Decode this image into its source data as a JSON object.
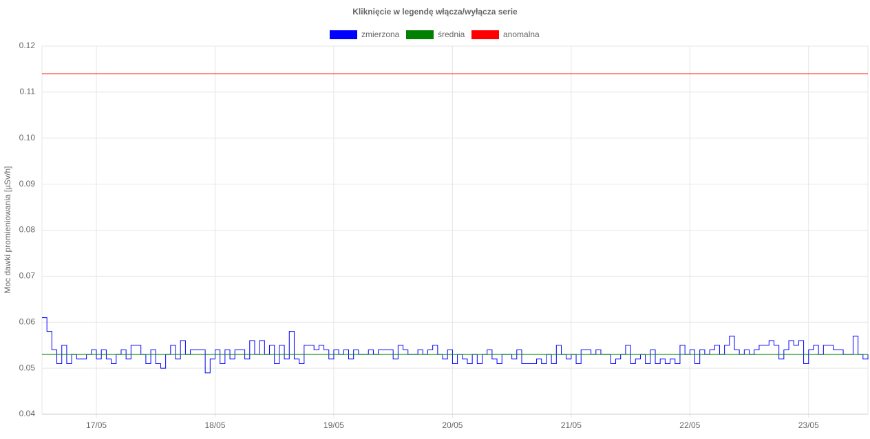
{
  "chart_data": {
    "type": "step-line",
    "title": "Kliknięcie w legendę włącza/wyłącza serie",
    "y_label": "Moc dawki promieniowania [µSv/h]",
    "xlim": [
      13,
      180
    ],
    "ylim": [
      0.04,
      0.12
    ],
    "xticks": [
      {
        "value": 24,
        "label": "17/05"
      },
      {
        "value": 48,
        "label": "18/05"
      },
      {
        "value": 72,
        "label": "19/05"
      },
      {
        "value": 96,
        "label": "20/05"
      },
      {
        "value": 120,
        "label": "21/05"
      },
      {
        "value": 144,
        "label": "22/05"
      },
      {
        "value": 168,
        "label": "23/05"
      }
    ],
    "yticks": [
      0.04,
      0.05,
      0.06,
      0.07,
      0.08,
      0.09,
      {
        "value": 0.1,
        "label": "0.10"
      },
      0.11,
      0.12
    ],
    "grid": true,
    "series": [
      {
        "name": "zmierzona",
        "color": "#0000ff",
        "x": [
          13,
          14,
          15,
          16,
          17,
          18,
          19,
          20,
          21,
          22,
          23,
          24,
          25,
          26,
          27,
          28,
          29,
          30,
          31,
          32,
          33,
          34,
          35,
          36,
          37,
          38,
          39,
          40,
          41,
          42,
          43,
          44,
          45,
          46,
          47,
          48,
          49,
          50,
          51,
          52,
          53,
          54,
          55,
          56,
          57,
          58,
          59,
          60,
          61,
          62,
          63,
          64,
          65,
          66,
          67,
          68,
          69,
          70,
          71,
          72,
          73,
          74,
          75,
          76,
          77,
          78,
          79,
          80,
          81,
          82,
          83,
          84,
          85,
          86,
          87,
          88,
          89,
          90,
          91,
          92,
          93,
          94,
          95,
          96,
          97,
          98,
          99,
          100,
          101,
          102,
          103,
          104,
          105,
          106,
          107,
          108,
          109,
          110,
          111,
          112,
          113,
          114,
          115,
          116,
          117,
          118,
          119,
          120,
          121,
          122,
          123,
          124,
          125,
          126,
          127,
          128,
          129,
          130,
          131,
          132,
          133,
          134,
          135,
          136,
          137,
          138,
          139,
          140,
          141,
          142,
          143,
          144,
          145,
          146,
          147,
          148,
          149,
          150,
          151,
          152,
          153,
          154,
          155,
          156,
          157,
          158,
          159,
          160,
          161,
          162,
          163,
          164,
          165,
          166,
          167,
          168,
          169,
          170,
          171,
          172,
          173,
          174,
          175,
          176,
          177,
          178,
          179,
          180
        ],
        "values": [
          0.061,
          0.058,
          0.054,
          0.051,
          0.055,
          0.051,
          0.053,
          0.052,
          0.052,
          0.053,
          0.054,
          0.052,
          0.054,
          0.052,
          0.051,
          0.053,
          0.054,
          0.052,
          0.055,
          0.055,
          0.053,
          0.051,
          0.054,
          0.051,
          0.05,
          0.053,
          0.055,
          0.052,
          0.056,
          0.053,
          0.054,
          0.054,
          0.054,
          0.049,
          0.052,
          0.054,
          0.051,
          0.054,
          0.052,
          0.054,
          0.054,
          0.052,
          0.056,
          0.053,
          0.056,
          0.053,
          0.055,
          0.051,
          0.055,
          0.052,
          0.058,
          0.052,
          0.051,
          0.055,
          0.055,
          0.054,
          0.055,
          0.054,
          0.052,
          0.054,
          0.053,
          0.054,
          0.052,
          0.054,
          0.053,
          0.053,
          0.054,
          0.053,
          0.054,
          0.054,
          0.054,
          0.052,
          0.055,
          0.054,
          0.053,
          0.053,
          0.054,
          0.053,
          0.054,
          0.055,
          0.053,
          0.052,
          0.054,
          0.051,
          0.053,
          0.052,
          0.051,
          0.053,
          0.051,
          0.053,
          0.054,
          0.052,
          0.051,
          0.053,
          0.053,
          0.052,
          0.054,
          0.051,
          0.051,
          0.051,
          0.052,
          0.051,
          0.053,
          0.051,
          0.055,
          0.053,
          0.052,
          0.053,
          0.051,
          0.054,
          0.054,
          0.053,
          0.054,
          0.053,
          0.053,
          0.051,
          0.052,
          0.053,
          0.055,
          0.051,
          0.052,
          0.053,
          0.051,
          0.054,
          0.051,
          0.052,
          0.051,
          0.052,
          0.051,
          0.055,
          0.053,
          0.054,
          0.051,
          0.054,
          0.053,
          0.054,
          0.055,
          0.053,
          0.055,
          0.057,
          0.054,
          0.053,
          0.054,
          0.053,
          0.054,
          0.055,
          0.055,
          0.056,
          0.055,
          0.052,
          0.054,
          0.056,
          0.055,
          0.056,
          0.051,
          0.054,
          0.055,
          0.053,
          0.055,
          0.055,
          0.054,
          0.054,
          0.053,
          0.053,
          0.057,
          0.053,
          0.052,
          0.053
        ]
      },
      {
        "name": "średnia",
        "color": "#008000",
        "x": [
          13,
          180
        ],
        "values": [
          0.053,
          0.053
        ]
      },
      {
        "name": "anomalna",
        "color": "#ff0000",
        "x": [
          13,
          180
        ],
        "values": [
          0.114,
          0.114
        ]
      }
    ]
  }
}
